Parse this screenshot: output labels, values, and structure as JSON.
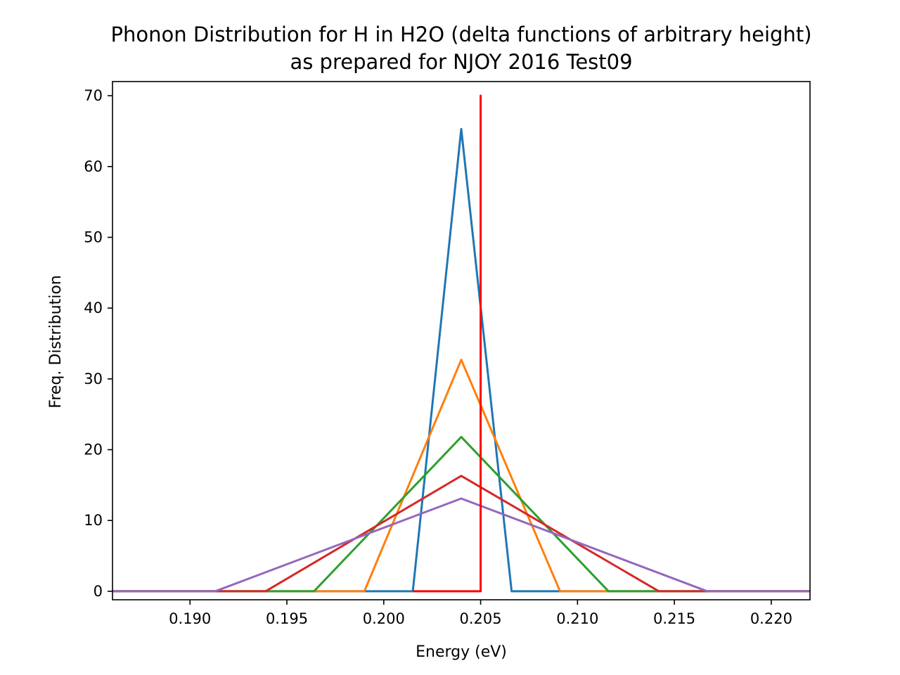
{
  "chart_data": {
    "type": "line",
    "title": "Phonon Distribution for H in H2O (delta functions of arbitrary height)",
    "subtitle": "as prepared for NJOY 2016 Test09",
    "xlabel": "Energy (eV)",
    "ylabel": "Freq. Distribution",
    "xlim": [
      0.186,
      0.222
    ],
    "ylim": [
      -1.2,
      72
    ],
    "grid": false,
    "x_ticks": [
      "0.190",
      "0.195",
      "0.200",
      "0.205",
      "0.210",
      "0.215",
      "0.220"
    ],
    "x_tick_values": [
      0.19,
      0.195,
      0.2,
      0.205,
      0.21,
      0.215,
      0.22
    ],
    "y_ticks": [
      "0",
      "10",
      "20",
      "30",
      "40",
      "50",
      "60",
      "70"
    ],
    "y_tick_values": [
      0,
      10,
      20,
      30,
      40,
      50,
      60,
      70
    ],
    "series": [
      {
        "color": "#1f77b4",
        "x": [
          0.186,
          0.2015,
          0.204,
          0.2066,
          0.222
        ],
        "y": [
          0,
          0,
          65.3,
          0,
          0
        ]
      },
      {
        "color": "#ff7f0e",
        "x": [
          0.186,
          0.199,
          0.204,
          0.2091,
          0.222
        ],
        "y": [
          0,
          0,
          32.7,
          0,
          0
        ]
      },
      {
        "color": "#2ca02c",
        "x": [
          0.186,
          0.1964,
          0.204,
          0.2116,
          0.222
        ],
        "y": [
          0,
          0,
          21.8,
          0,
          0
        ]
      },
      {
        "color": "#d62728",
        "x": [
          0.186,
          0.1939,
          0.204,
          0.2142,
          0.222
        ],
        "y": [
          0,
          0,
          16.3,
          0,
          0
        ]
      },
      {
        "color": "#9467bd",
        "x": [
          0.186,
          0.1913,
          0.204,
          0.2167,
          0.222
        ],
        "y": [
          0,
          0,
          13.1,
          0,
          0
        ]
      },
      {
        "color": "#ff0000",
        "x": [
          0.2015,
          0.205,
          0.205,
          0.205
        ],
        "y": [
          0,
          0,
          70,
          0
        ]
      }
    ]
  }
}
